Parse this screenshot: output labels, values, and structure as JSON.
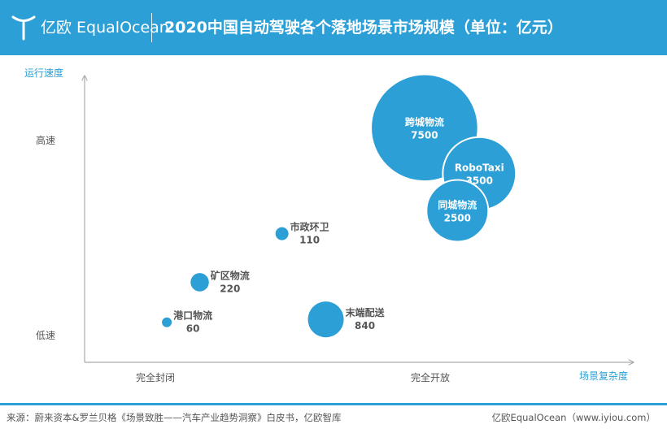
{
  "header": {
    "logo_text": "亿欧 EqualOcean",
    "title": "2020中国自动驾驶各个落地场景市场规模（单位：亿元）",
    "bg_color": "#2b9fd6"
  },
  "chart_data": {
    "type": "scatter",
    "subtype": "bubble",
    "title": "2020中国自动驾驶各个落地场景市场规模（单位：亿元）",
    "xlabel": "场景复杂度",
    "ylabel": "运行速度",
    "x_ticks": [
      "完全封闭",
      "完全开放"
    ],
    "y_ticks": [
      "低速",
      "高速"
    ],
    "x_range": [
      0,
      100
    ],
    "y_range": [
      0,
      100
    ],
    "grid": false,
    "bubble_color": "#2b9fd6",
    "points": [
      {
        "name": "跨城物流",
        "value": 7500,
        "x": 62,
        "y": 82,
        "label_inside": true
      },
      {
        "name": "RoboTaxi",
        "value": 3500,
        "x": 72,
        "y": 66,
        "label_inside": true
      },
      {
        "name": "同城物流",
        "value": 2500,
        "x": 68,
        "y": 53,
        "label_inside": true
      },
      {
        "name": "市政环卫",
        "value": 110,
        "x": 36,
        "y": 45,
        "label_inside": false
      },
      {
        "name": "矿区物流",
        "value": 220,
        "x": 21,
        "y": 28,
        "label_inside": false
      },
      {
        "name": "港口物流",
        "value": 60,
        "x": 15,
        "y": 14,
        "label_inside": false
      },
      {
        "name": "末端配送",
        "value": 840,
        "x": 44,
        "y": 15,
        "label_inside": false
      }
    ]
  },
  "footer": {
    "source": "来源：蔚来资本&罗兰贝格《场景致胜——汽车产业趋势洞察》白皮书，亿欧智库",
    "brand": "亿欧EqualOcean（www.iyiou.com）"
  }
}
